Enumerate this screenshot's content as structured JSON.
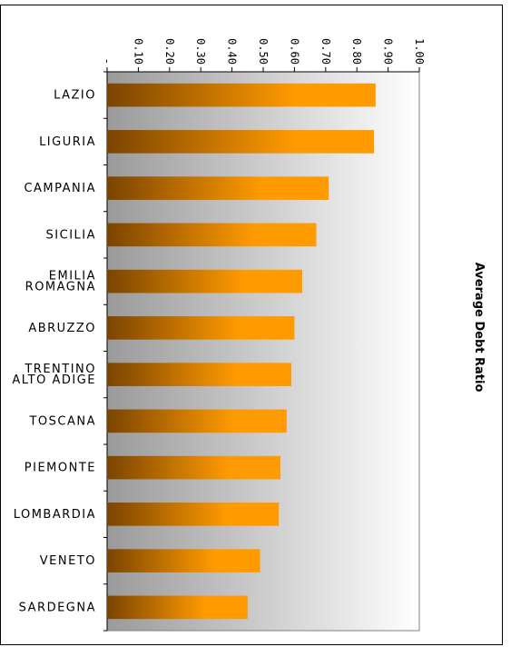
{
  "chart_data": {
    "type": "bar",
    "orientation": "horizontal",
    "categories": [
      "LAZIO",
      "LIGURIA",
      "CAMPANIA",
      "SICILIA",
      "EMILIA ROMAGNA",
      "ABRUZZO",
      "TRENTINO ALTO ADIGE",
      "TOSCANA",
      "PIEMONTE",
      "LOMBARDIA",
      "VENETO",
      "SARDEGNA"
    ],
    "category_lines": [
      [
        "LAZIO"
      ],
      [
        "LIGURIA"
      ],
      [
        "CAMPANIA"
      ],
      [
        "SICILIA"
      ],
      [
        "EMILIA",
        "ROMAGNA"
      ],
      [
        "ABRUZZO"
      ],
      [
        "TRENTINO",
        "ALTO ADIGE"
      ],
      [
        "TOSCANA"
      ],
      [
        "PIEMONTE"
      ],
      [
        "LOMBARDIA"
      ],
      [
        "VENETO"
      ],
      [
        "SARDEGNA"
      ]
    ],
    "values": [
      0.86,
      0.855,
      0.71,
      0.67,
      0.625,
      0.6,
      0.59,
      0.575,
      0.555,
      0.55,
      0.49,
      0.45
    ],
    "ticks": [
      "-",
      "0.10",
      "0.20",
      "0.30",
      "0.40",
      "0.50",
      "0.60",
      "0.70",
      "0.80",
      "0.90",
      "1.00"
    ],
    "tick_values": [
      0,
      0.1,
      0.2,
      0.3,
      0.4,
      0.5,
      0.6,
      0.7,
      0.8,
      0.9,
      1.0
    ],
    "xlim": [
      0,
      1.0
    ],
    "ylabel": "Average Debt Ratio",
    "grid": false,
    "colors": {
      "bar_dark": "#7a4400",
      "bar_light": "#ff9a00",
      "plot_dark": "#9a9a9a",
      "plot_light": "#ffffff"
    }
  }
}
